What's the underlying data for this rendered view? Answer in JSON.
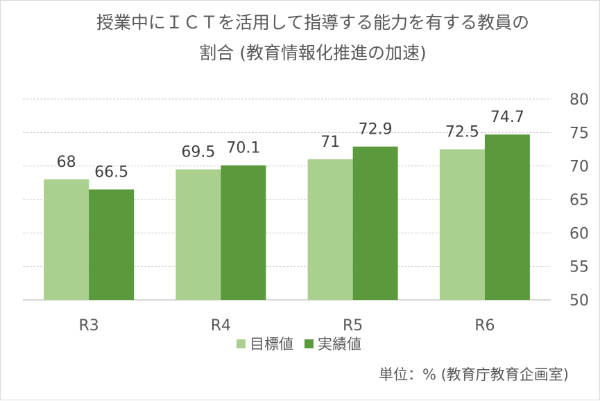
{
  "chart_data": {
    "type": "bar",
    "title_lines": [
      "授業中にＩＣＴを活用して指導する能力を有する教員の",
      "割合 (教育情報化推進の加速)"
    ],
    "categories": [
      "R3",
      "R4",
      "R5",
      "R6"
    ],
    "series": [
      {
        "name": "目標値",
        "values": [
          68,
          69.5,
          71,
          72.5
        ],
        "color": "#a9d08e"
      },
      {
        "name": "実績値",
        "values": [
          66.5,
          70.1,
          72.9,
          74.7
        ],
        "color": "#5b9a3c"
      }
    ],
    "y_ticks": [
      "50",
      "55",
      "60",
      "65",
      "70",
      "75",
      "80"
    ],
    "ylim": [
      50,
      80
    ],
    "y_axis_side": "right",
    "grid": "horizontal-dashed",
    "legend_position": "bottom",
    "note": "単位：% (教育庁教育企画室)"
  }
}
